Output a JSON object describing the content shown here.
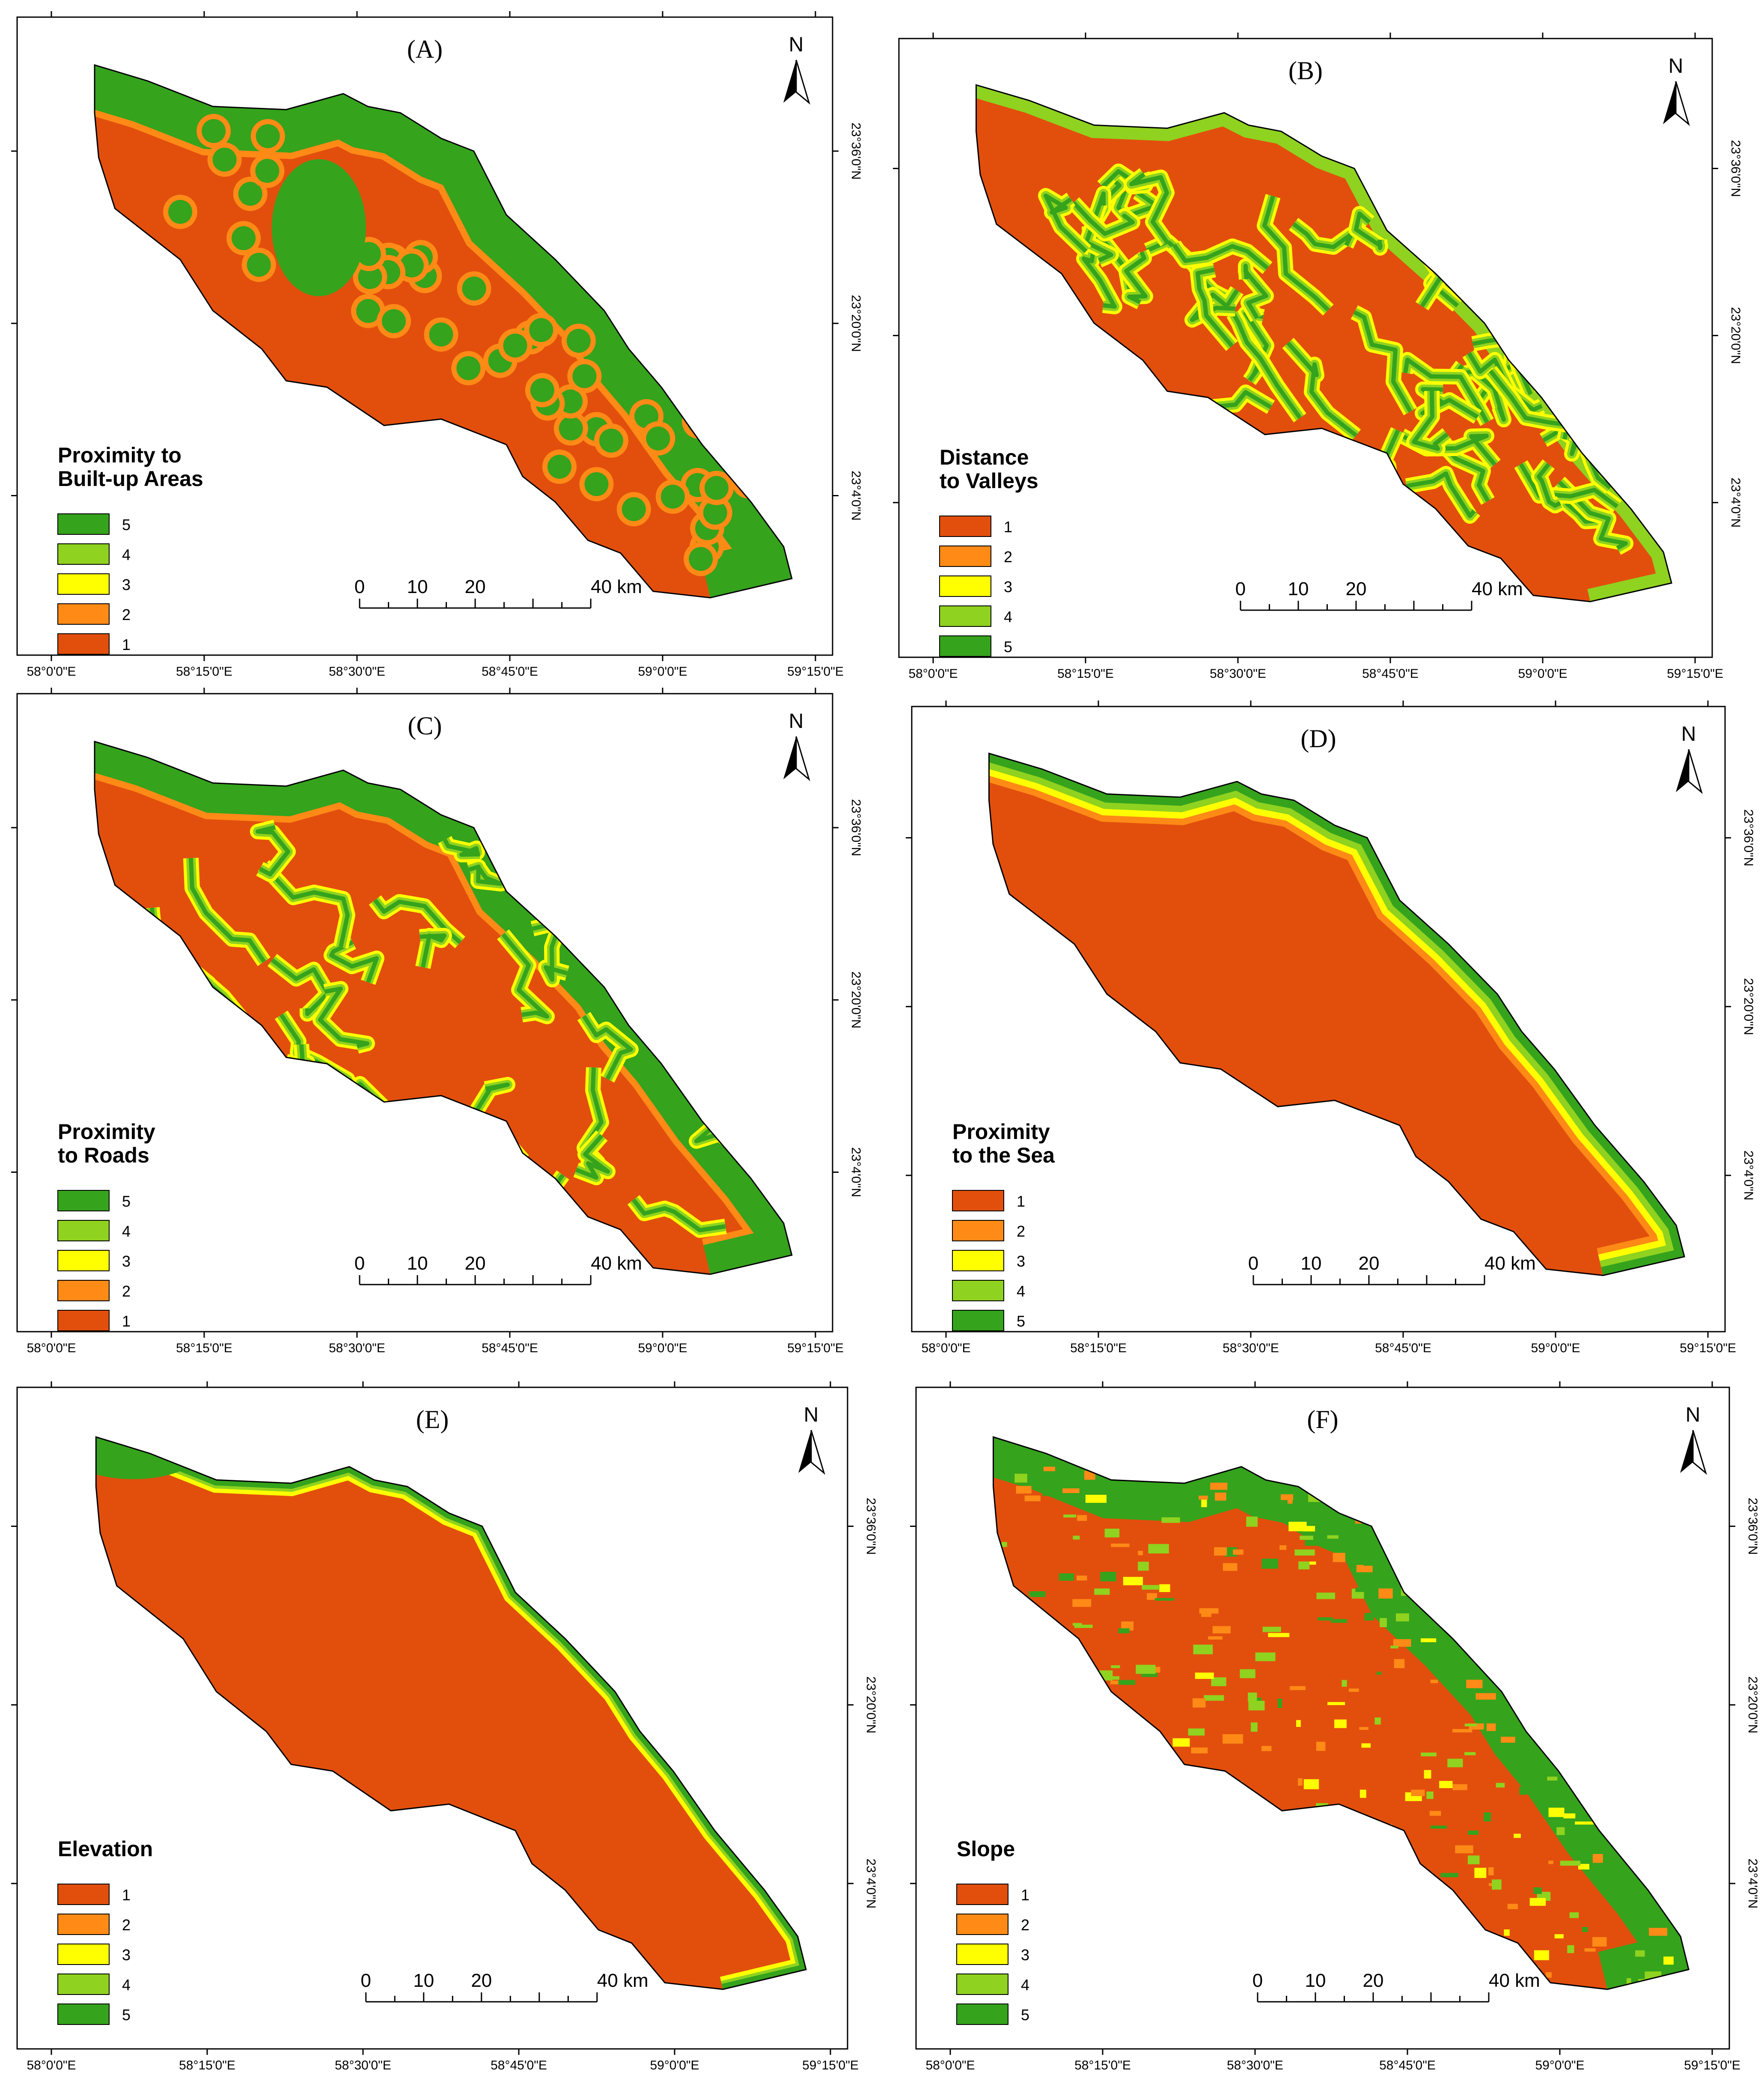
{
  "palette": {
    "1": "#e24f0d",
    "2": "#ff8a16",
    "3": "#ffff00",
    "4": "#8fd21f",
    "5": "#35a31c"
  },
  "common": {
    "north": "N",
    "scale": {
      "labels": [
        "0",
        "10",
        "20",
        "40 km"
      ],
      "values_km": [
        0,
        10,
        20,
        40
      ]
    },
    "lon_ticks": [
      "58°0'0\"E",
      "58°15'0\"E",
      "58°30'0\"E",
      "58°45'0\"E",
      "59°0'0\"E",
      "59°15'0\"E"
    ],
    "lat_ticks": [
      "23°36'0\"N",
      "23°20'0\"N",
      "23°4'0\"N"
    ]
  },
  "panels": [
    {
      "id": "A",
      "title": "(A)",
      "legend_title": [
        "Proximity to",
        "Built-up Areas"
      ],
      "legend_order": [
        5,
        4,
        3,
        2,
        1
      ],
      "pattern": "buffers-dots",
      "base_class": 1,
      "accent_class": 5
    },
    {
      "id": "B",
      "title": "(B)",
      "legend_title": [
        "Distance",
        "to Valleys"
      ],
      "legend_order": [
        1,
        2,
        3,
        4,
        5
      ],
      "pattern": "dense-network",
      "base_class": 1,
      "accent_class": 5
    },
    {
      "id": "C",
      "title": "(C)",
      "legend_title": [
        "Proximity",
        "to Roads"
      ],
      "legend_order": [
        5,
        4,
        3,
        2,
        1
      ],
      "pattern": "road-network",
      "base_class": 1,
      "accent_class": 5
    },
    {
      "id": "D",
      "title": "(D)",
      "legend_title": [
        "Proximity",
        "to the Sea"
      ],
      "legend_order": [
        1,
        2,
        3,
        4,
        5
      ],
      "pattern": "coast-bands",
      "base_class": 1,
      "accent_class": 5
    },
    {
      "id": "E",
      "title": "(E)",
      "legend_title": [
        "Elevation"
      ],
      "legend_order": [
        1,
        2,
        3,
        4,
        5
      ],
      "pattern": "coast-lowland",
      "base_class": 1,
      "accent_class": 5
    },
    {
      "id": "F",
      "title": "(F)",
      "legend_title": [
        "Slope"
      ],
      "legend_order": [
        1,
        2,
        3,
        4,
        5
      ],
      "pattern": "noise",
      "base_class": 1,
      "accent_class": 5
    }
  ]
}
